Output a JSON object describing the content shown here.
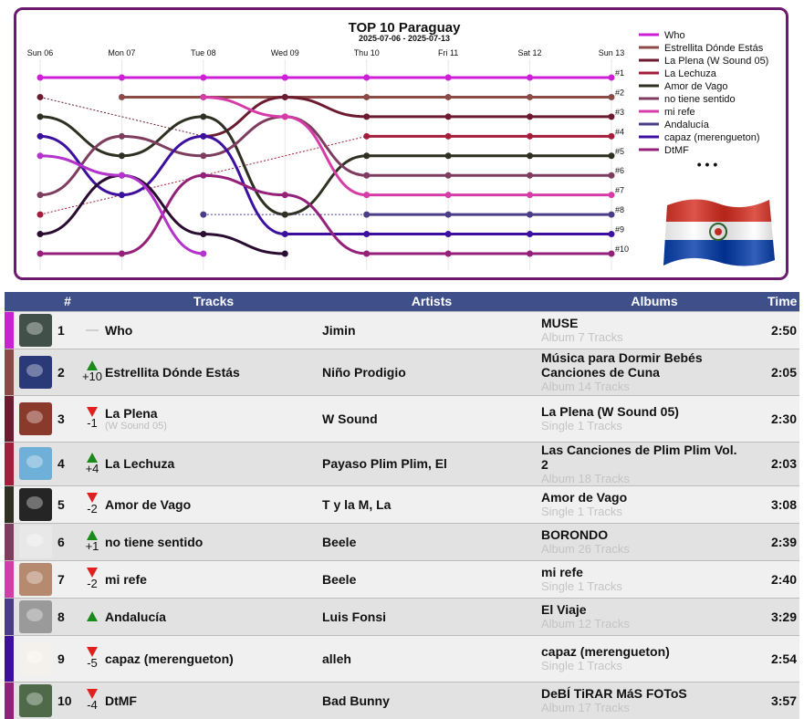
{
  "chart": {
    "title": "TOP 10 Paraguay",
    "subtitle": "2025-07-06 - 2025-07-13"
  },
  "chart_data": {
    "type": "line",
    "title": "TOP 10 Paraguay",
    "subtitle": "2025-07-06 - 2025-07-13",
    "x": [
      "Sun 06",
      "Mon 07",
      "Tue 08",
      "Wed 09",
      "Thu 10",
      "Fri 11",
      "Sat 12",
      "Sun 13"
    ],
    "y_inverted": true,
    "ylim": [
      1,
      10
    ],
    "rank_labels": [
      "#1",
      "#2",
      "#3",
      "#4",
      "#5",
      "#6",
      "#7",
      "#8",
      "#9",
      "#10"
    ],
    "legend_position": "top-right",
    "legend_more": "• • •",
    "series": [
      {
        "name": "Who",
        "color": "#cc1fd6",
        "values": [
          1,
          1,
          1,
          1,
          1,
          1,
          1,
          1
        ]
      },
      {
        "name": "Estrellita Dónde Estás",
        "color": "#8b4a45",
        "values": [
          null,
          2,
          2,
          2,
          2,
          2,
          2,
          2
        ]
      },
      {
        "name": "La Plena (W Sound 05)",
        "color": "#6b1a30",
        "values": [
          2,
          null,
          4,
          2,
          3,
          3,
          3,
          3
        ]
      },
      {
        "name": "La Lechuza",
        "color": "#a51d3a",
        "values": [
          8,
          null,
          null,
          null,
          4,
          4,
          4,
          4
        ]
      },
      {
        "name": "Amor de Vago",
        "color": "#2f2f22",
        "values": [
          3,
          5,
          3,
          8,
          5,
          5,
          5,
          5
        ]
      },
      {
        "name": "no tiene sentido",
        "color": "#7e3d5e",
        "values": [
          7,
          4,
          5,
          3,
          6,
          6,
          6,
          6
        ]
      },
      {
        "name": "mi refe",
        "color": "#d63ca8",
        "values": [
          null,
          null,
          2,
          3,
          7,
          7,
          7,
          7
        ]
      },
      {
        "name": "Andalucía",
        "color": "#4b3c88",
        "values": [
          null,
          null,
          8,
          null,
          8,
          8,
          8,
          8
        ]
      },
      {
        "name": "capaz (merengueton)",
        "color": "#3d0fa0",
        "values": [
          4,
          7,
          4,
          9,
          9,
          9,
          9,
          9
        ]
      },
      {
        "name": "DtMF",
        "color": "#94207a",
        "values": [
          10,
          10,
          6,
          7,
          10,
          10,
          10,
          10
        ]
      },
      {
        "name": "",
        "color": "#2a0c30",
        "values": [
          9,
          6,
          9,
          10,
          null,
          null,
          null,
          null
        ]
      },
      {
        "name": "",
        "color": "#b433cc",
        "values": [
          5,
          6,
          10,
          null,
          null,
          null,
          null,
          null
        ]
      }
    ]
  },
  "table": {
    "headers": {
      "rank": "#",
      "tracks": "Tracks",
      "artists": "Artists",
      "albums": "Albums",
      "time": "Time"
    },
    "rows": [
      {
        "rank": "1",
        "change": "same",
        "change_num": "",
        "track": "Who",
        "track_sub": "",
        "artist": "Jimin",
        "album": "MUSE",
        "album_sub": "Album 7 Tracks",
        "time": "2:50",
        "color": "#cc1fd6",
        "cover": "#41514a"
      },
      {
        "rank": "2",
        "change": "up",
        "change_num": "+10",
        "track": "Estrellita Dónde Estás",
        "track_sub": "",
        "artist": "Niño Prodigio",
        "album": "Música para Dormir Bebés Canciones de Cuna",
        "album_sub": "Album 14 Tracks",
        "time": "2:05",
        "color": "#8b4a45",
        "cover": "#2a3a78"
      },
      {
        "rank": "3",
        "change": "down",
        "change_num": "-1",
        "track": "La Plena",
        "track_sub": "(W Sound 05)",
        "artist": "W Sound",
        "album": "La Plena (W Sound 05)",
        "album_sub": "Single 1 Tracks",
        "time": "2:30",
        "color": "#6b1a30",
        "cover": "#8a3a2a"
      },
      {
        "rank": "4",
        "change": "up",
        "change_num": "+4",
        "track": "La Lechuza",
        "track_sub": "",
        "artist": "Payaso Plim Plim, El",
        "album": "Las Canciones de Plim Plim Vol. 2",
        "album_sub": "Album 18 Tracks",
        "time": "2:03",
        "color": "#a51d3a",
        "cover": "#6fb0d8"
      },
      {
        "rank": "5",
        "change": "down",
        "change_num": "-2",
        "track": "Amor de Vago",
        "track_sub": "",
        "artist": "T y la M, La",
        "album": "Amor de Vago",
        "album_sub": "Single 1 Tracks",
        "time": "3:08",
        "color": "#2f2f22",
        "cover": "#252525"
      },
      {
        "rank": "6",
        "change": "up",
        "change_num": "+1",
        "track": "no tiene sentido",
        "track_sub": "",
        "artist": "Beele",
        "album": "BORONDO",
        "album_sub": "Album 26 Tracks",
        "time": "2:39",
        "color": "#7e3d5e",
        "cover": "#e8e8e8"
      },
      {
        "rank": "7",
        "change": "down",
        "change_num": "-2",
        "track": "mi refe",
        "track_sub": "",
        "artist": "Beele",
        "album": "mi refe",
        "album_sub": "Single 1 Tracks",
        "time": "2:40",
        "color": "#d63ca8",
        "cover": "#b58a6e"
      },
      {
        "rank": "8",
        "change": "up",
        "change_num": "",
        "track": "Andalucía",
        "track_sub": "",
        "artist": "Luis Fonsi",
        "album": "El Viaje",
        "album_sub": "Album 12 Tracks",
        "time": "3:29",
        "color": "#4b3c88",
        "cover": "#9a9a9a"
      },
      {
        "rank": "9",
        "change": "down",
        "change_num": "-5",
        "track": "capaz (merengueton)",
        "track_sub": "",
        "artist": "alleh",
        "album": "capaz (merengueton)",
        "album_sub": "Single 1 Tracks",
        "time": "2:54",
        "color": "#3d0fa0",
        "cover": "#f4f1ec"
      },
      {
        "rank": "10",
        "change": "down",
        "change_num": "-4",
        "track": "DtMF",
        "track_sub": "",
        "artist": "Bad Bunny",
        "album": "DeBÍ TiRAR MáS FOToS",
        "album_sub": "Album 17 Tracks",
        "time": "3:57",
        "color": "#94207a",
        "cover": "#4e6a48"
      }
    ]
  }
}
